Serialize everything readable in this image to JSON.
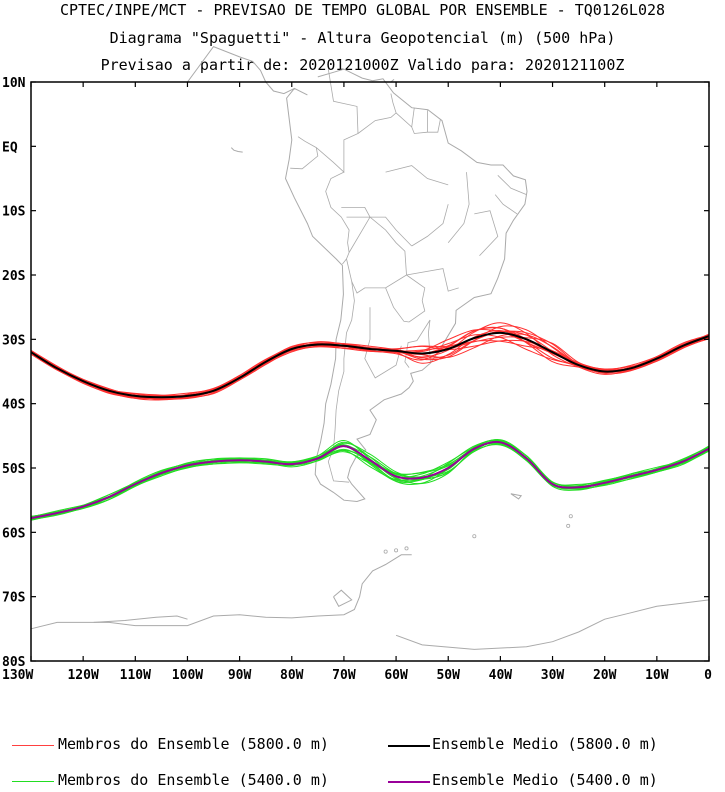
{
  "header": {
    "line1": "CPTEC/INPE/MCT - PREVISAO DE TEMPO GLOBAL POR ENSEMBLE - TQ0126L028",
    "line2": "Diagrama \"Spaguetti\" - Altura Geopotencial (m) (500 hPa)",
    "line3": "Previsao a partir de: 2020121000Z  Valido para: 2020121100Z"
  },
  "map": {
    "lat_labels": [
      "10N",
      "EQ",
      "10S",
      "20S",
      "30S",
      "40S",
      "50S",
      "60S",
      "70S",
      "80S"
    ],
    "lon_labels": [
      "130W",
      "120W",
      "110W",
      "100W",
      "90W",
      "80W",
      "70W",
      "60W",
      "50W",
      "40W",
      "30W",
      "20W",
      "10W",
      "0"
    ],
    "lat_range": [
      10,
      -80
    ],
    "lon_range": [
      -130,
      0
    ],
    "coast_color": "#aaaaaa",
    "series": [
      {
        "key": "red_members",
        "color": "#ff3030",
        "mean_color": "#000000",
        "mean": [
          [
            -130,
            -32
          ],
          [
            -125,
            -34.5
          ],
          [
            -120,
            -36.5
          ],
          [
            -115,
            -38
          ],
          [
            -110,
            -38.8
          ],
          [
            -105,
            -39
          ],
          [
            -100,
            -38.8
          ],
          [
            -95,
            -38
          ],
          [
            -90,
            -36
          ],
          [
            -85,
            -33.5
          ],
          [
            -80,
            -31.5
          ],
          [
            -75,
            -30.8
          ],
          [
            -70,
            -31
          ],
          [
            -65,
            -31.5
          ],
          [
            -60,
            -31.8
          ],
          [
            -55,
            -32.2
          ],
          [
            -50,
            -31.5
          ],
          [
            -45,
            -29.8
          ],
          [
            -40,
            -29
          ],
          [
            -35,
            -30
          ],
          [
            -30,
            -32
          ],
          [
            -25,
            -34
          ],
          [
            -20,
            -35
          ],
          [
            -15,
            -34.5
          ],
          [
            -10,
            -33
          ],
          [
            -5,
            -31
          ],
          [
            0,
            -29.5
          ]
        ]
      },
      {
        "key": "green_members",
        "color": "#22dd22",
        "mean_color": "#990099",
        "mean": [
          [
            -130,
            -57.8
          ],
          [
            -125,
            -57
          ],
          [
            -120,
            -56
          ],
          [
            -115,
            -54.5
          ],
          [
            -110,
            -52.5
          ],
          [
            -105,
            -50.8
          ],
          [
            -100,
            -49.6
          ],
          [
            -95,
            -49
          ],
          [
            -90,
            -48.8
          ],
          [
            -85,
            -49
          ],
          [
            -80,
            -49.4
          ],
          [
            -75,
            -48.5
          ],
          [
            -70,
            -46.6
          ],
          [
            -65,
            -48.8
          ],
          [
            -60,
            -51.3
          ],
          [
            -55,
            -51.5
          ],
          [
            -50,
            -50
          ],
          [
            -45,
            -47
          ],
          [
            -40,
            -46
          ],
          [
            -35,
            -48.5
          ],
          [
            -30,
            -52.5
          ],
          [
            -25,
            -53
          ],
          [
            -20,
            -52.3
          ],
          [
            -15,
            -51.3
          ],
          [
            -10,
            -50.3
          ],
          [
            -5,
            -49
          ],
          [
            0,
            -47
          ]
        ]
      }
    ]
  },
  "legend": {
    "red_members": "Membros do Ensemble (5800.0 m)",
    "black_mean": "Ensemble Medio (5800.0 m)",
    "green_members": "Membros do Ensemble (5400.0 m)",
    "purple_mean": "Ensemble Medio (5400.0 m)",
    "colors": {
      "red": "#ff4040",
      "black": "#000000",
      "green": "#22dd22",
      "purple": "#990099"
    }
  }
}
